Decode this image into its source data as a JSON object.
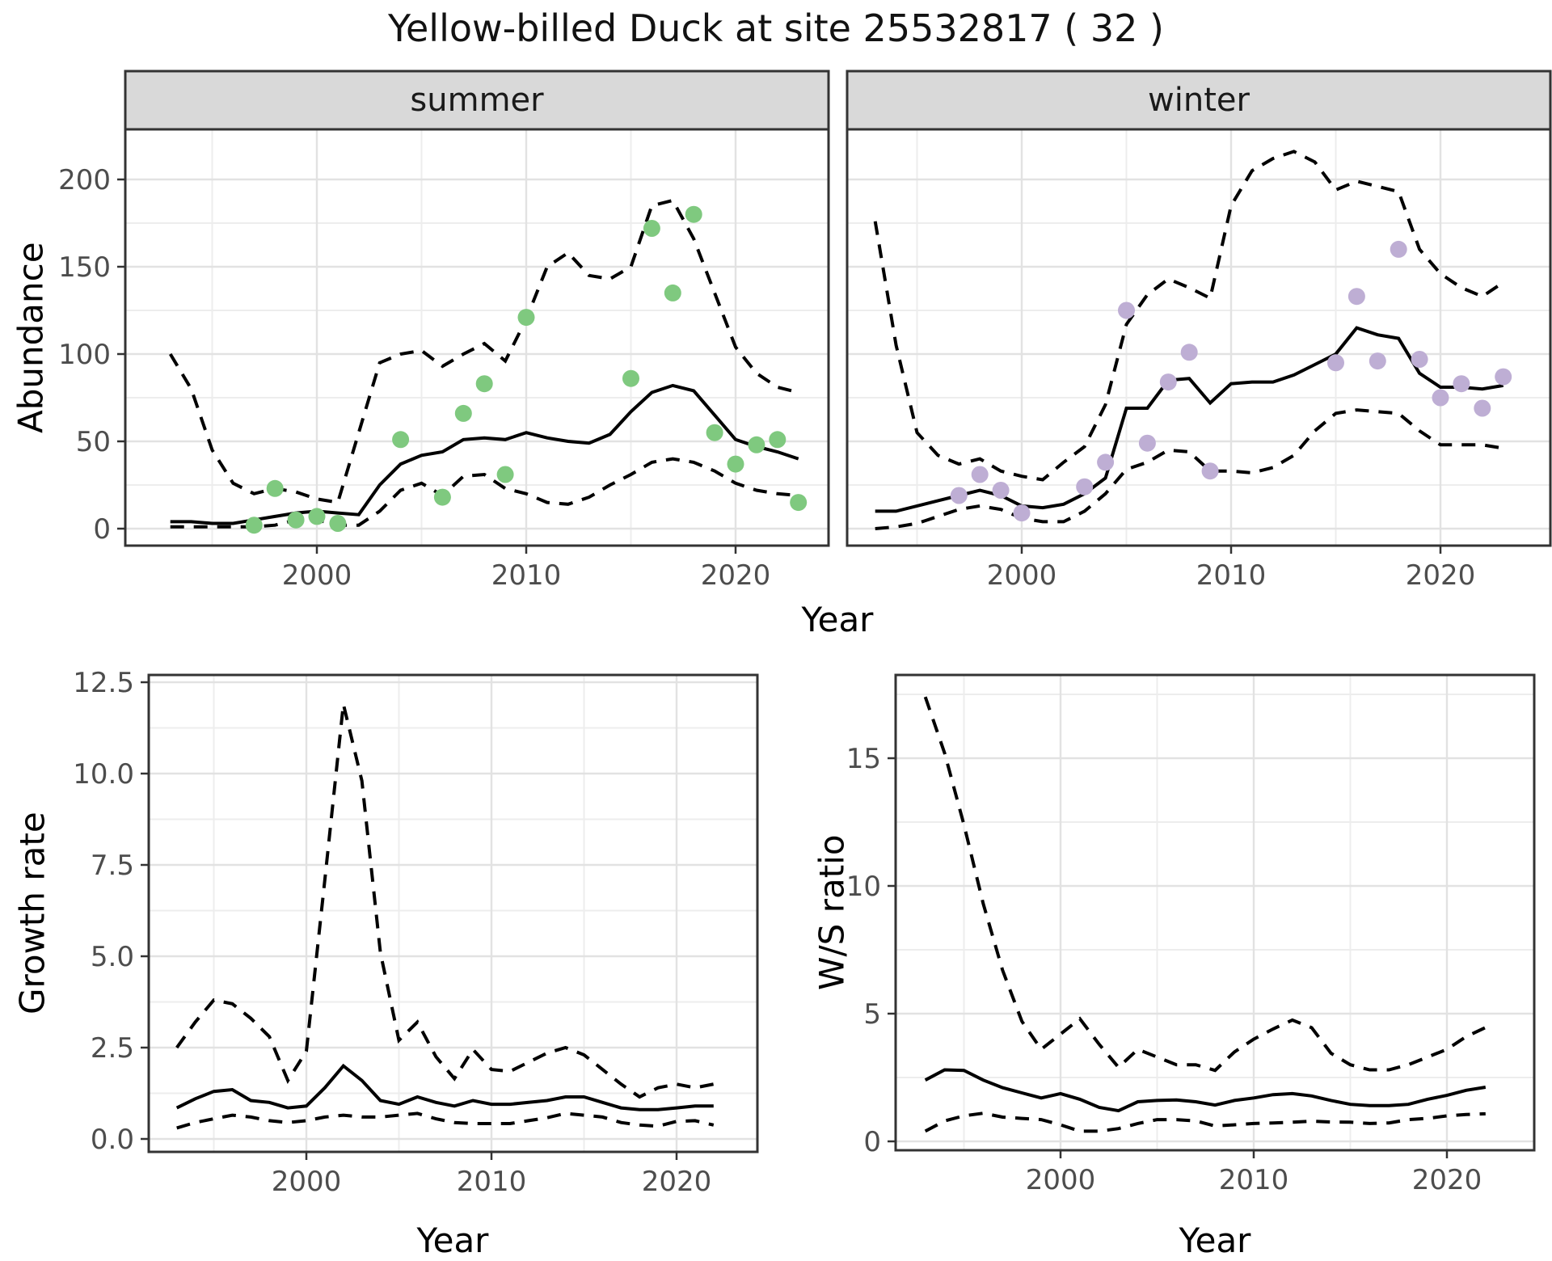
{
  "title": "Yellow-billed Duck at site 25532817 ( 32 )",
  "axis_titles": {
    "abundance": "Abundance",
    "growth": "Growth rate",
    "ws": "W/S ratio",
    "year": "Year"
  },
  "colors": {
    "summer_points": "#7fc97f",
    "winter_points": "#beaed4",
    "line": "#000000",
    "grid_major": "#e2e2e2",
    "grid_minor": "#ededed",
    "strip_fill": "#d9d9d9",
    "panel_border": "#333333",
    "tick_text": "#4d4d4d",
    "background": "#ffffff"
  },
  "chart_data": [
    {
      "type": "line",
      "facet_label": "summer",
      "xlabel": "Year",
      "ylabel": "Abundance",
      "x": [
        1993,
        1994,
        1995,
        1996,
        1997,
        1998,
        1999,
        2000,
        2001,
        2002,
        2003,
        2004,
        2005,
        2006,
        2007,
        2008,
        2009,
        2010,
        2011,
        2012,
        2013,
        2014,
        2015,
        2016,
        2017,
        2018,
        2019,
        2020,
        2021,
        2022,
        2023
      ],
      "series": [
        {
          "name": "median",
          "linetype": "solid",
          "values": [
            4,
            4,
            3,
            3,
            5,
            7,
            9,
            10,
            9,
            8,
            25,
            37,
            42,
            44,
            51,
            52,
            51,
            55,
            52,
            50,
            49,
            54,
            67,
            78,
            82,
            79,
            65,
            51,
            47,
            44,
            40
          ]
        },
        {
          "name": "upper-ci",
          "linetype": "dashed",
          "values": [
            100,
            80,
            45,
            26,
            20,
            23,
            21,
            17,
            15,
            55,
            95,
            100,
            102,
            93,
            100,
            106,
            96,
            120,
            150,
            158,
            145,
            143,
            150,
            185,
            188,
            166,
            135,
            104,
            89,
            81,
            78
          ]
        },
        {
          "name": "lower-ci",
          "linetype": "dashed",
          "values": [
            1,
            1,
            1,
            1,
            1,
            2,
            5,
            5,
            2,
            2,
            10,
            22,
            26,
            19,
            30,
            31,
            23,
            20,
            15,
            14,
            18,
            25,
            31,
            38,
            40,
            38,
            33,
            26,
            22,
            20,
            19
          ]
        }
      ],
      "observed_points": [
        [
          1997,
          2
        ],
        [
          1998,
          23
        ],
        [
          1999,
          5
        ],
        [
          2000,
          7
        ],
        [
          2001,
          3
        ],
        [
          2004,
          51
        ],
        [
          2006,
          18
        ],
        [
          2007,
          66
        ],
        [
          2008,
          83
        ],
        [
          2009,
          31
        ],
        [
          2010,
          121
        ],
        [
          2015,
          86
        ],
        [
          2016,
          172
        ],
        [
          2017,
          135
        ],
        [
          2018,
          180
        ],
        [
          2019,
          55
        ],
        [
          2020,
          37
        ],
        [
          2021,
          48
        ],
        [
          2022,
          51
        ],
        [
          2023,
          15
        ]
      ],
      "point_color": "#7fc97f",
      "xlim": [
        1990.9,
        2024.4
      ],
      "ylim": [
        -9,
        229
      ],
      "xticks": [
        2000,
        2010,
        2020
      ],
      "xticks_minor": [
        1995,
        2005,
        2015
      ],
      "ytick_values": [
        0,
        50,
        100,
        150,
        200
      ],
      "ytick_labels": [
        "0",
        "50",
        "100",
        "150",
        "200"
      ],
      "yticks_minor": [
        25,
        75,
        125,
        175
      ],
      "grid": true,
      "legend": "none"
    },
    {
      "type": "line",
      "facet_label": "winter",
      "xlabel": "Year",
      "ylabel": "Abundance",
      "x": [
        1993,
        1994,
        1995,
        1996,
        1997,
        1998,
        1999,
        2000,
        2001,
        2002,
        2003,
        2004,
        2005,
        2006,
        2007,
        2008,
        2009,
        2010,
        2011,
        2012,
        2013,
        2014,
        2015,
        2016,
        2017,
        2018,
        2019,
        2020,
        2021,
        2022,
        2023
      ],
      "series": [
        {
          "name": "median",
          "linetype": "solid",
          "values": [
            10,
            10,
            13,
            16,
            19,
            22,
            19,
            13,
            12,
            14,
            20,
            29,
            69,
            69,
            85,
            86,
            72,
            83,
            84,
            84,
            88,
            94,
            100,
            115,
            111,
            109,
            89,
            81,
            81,
            80,
            82
          ]
        },
        {
          "name": "upper-ci",
          "linetype": "dashed",
          "values": [
            176,
            105,
            55,
            42,
            37,
            40,
            33,
            30,
            28,
            38,
            47,
            71,
            117,
            134,
            143,
            138,
            132,
            185,
            205,
            212,
            216,
            210,
            194,
            199,
            196,
            193,
            160,
            146,
            138,
            133,
            141
          ]
        },
        {
          "name": "lower-ci",
          "linetype": "dashed",
          "values": [
            0,
            1,
            3,
            7,
            11,
            13,
            11,
            6,
            4,
            4,
            10,
            20,
            34,
            38,
            45,
            44,
            33,
            33,
            32,
            35,
            42,
            56,
            66,
            68,
            67,
            66,
            56,
            48,
            48,
            48,
            46
          ]
        }
      ],
      "observed_points": [
        [
          1997,
          19
        ],
        [
          1998,
          31
        ],
        [
          1999,
          22
        ],
        [
          2000,
          9
        ],
        [
          2003,
          24
        ],
        [
          2004,
          38
        ],
        [
          2005,
          125
        ],
        [
          2006,
          49
        ],
        [
          2007,
          84
        ],
        [
          2008,
          101
        ],
        [
          2009,
          33
        ],
        [
          2015,
          95
        ],
        [
          2016,
          133
        ],
        [
          2017,
          96
        ],
        [
          2018,
          160
        ],
        [
          2019,
          97
        ],
        [
          2020,
          75
        ],
        [
          2021,
          83
        ],
        [
          2022,
          69
        ],
        [
          2023,
          87
        ]
      ],
      "point_color": "#beaed4",
      "xlim": [
        1991.6,
        2025.2
      ],
      "ylim": [
        -9,
        229
      ],
      "xticks": [
        2000,
        2010,
        2020
      ],
      "xticks_minor": [
        1995,
        2005,
        2015
      ],
      "ytick_values": [
        0,
        50,
        100,
        150,
        200
      ],
      "ytick_labels": [
        "0",
        "50",
        "100",
        "150",
        "200"
      ],
      "yticks_minor": [
        25,
        75,
        125,
        175
      ],
      "grid": true,
      "legend": "none"
    },
    {
      "type": "line",
      "facet_label": null,
      "xlabel": "Year",
      "ylabel": "Growth rate",
      "x": [
        1993,
        1994,
        1995,
        1996,
        1997,
        1998,
        1999,
        2000,
        2001,
        2002,
        2003,
        2004,
        2005,
        2006,
        2007,
        2008,
        2009,
        2010,
        2011,
        2012,
        2013,
        2014,
        2015,
        2016,
        2017,
        2018,
        2019,
        2020,
        2021,
        2022
      ],
      "series": [
        {
          "name": "median",
          "linetype": "solid",
          "values": [
            0.85,
            1.1,
            1.3,
            1.35,
            1.05,
            1.0,
            0.85,
            0.9,
            1.4,
            2.0,
            1.6,
            1.05,
            0.95,
            1.15,
            1.0,
            0.9,
            1.05,
            0.95,
            0.95,
            1.0,
            1.05,
            1.15,
            1.15,
            1.0,
            0.85,
            0.8,
            0.8,
            0.85,
            0.9,
            0.9
          ]
        },
        {
          "name": "upper-ci",
          "linetype": "dashed",
          "values": [
            2.5,
            3.2,
            3.8,
            3.7,
            3.3,
            2.8,
            1.6,
            2.4,
            7.1,
            11.9,
            9.8,
            5.1,
            2.7,
            3.2,
            2.25,
            1.65,
            2.45,
            1.9,
            1.85,
            2.1,
            2.35,
            2.5,
            2.3,
            1.9,
            1.5,
            1.15,
            1.4,
            1.5,
            1.4,
            1.5
          ]
        },
        {
          "name": "lower-ci",
          "linetype": "dashed",
          "values": [
            0.3,
            0.45,
            0.55,
            0.65,
            0.6,
            0.5,
            0.45,
            0.5,
            0.6,
            0.65,
            0.6,
            0.6,
            0.65,
            0.7,
            0.55,
            0.45,
            0.42,
            0.42,
            0.42,
            0.5,
            0.58,
            0.7,
            0.65,
            0.6,
            0.45,
            0.38,
            0.35,
            0.48,
            0.5,
            0.38
          ]
        }
      ],
      "observed_points": [],
      "point_color": null,
      "xlim": [
        1991.5,
        2024.4
      ],
      "ylim": [
        -0.35,
        12.7
      ],
      "xticks": [
        2000,
        2010,
        2020
      ],
      "xticks_minor": [
        1995,
        2005,
        2015
      ],
      "ytick_values": [
        0.0,
        2.5,
        5.0,
        7.5,
        10.0,
        12.5
      ],
      "ytick_labels": [
        "0.0",
        "2.5",
        "5.0",
        "7.5",
        "10.0",
        "12.5"
      ],
      "yticks_minor": [
        1.25,
        3.75,
        6.25,
        8.75,
        11.25
      ],
      "grid": true,
      "legend": "none"
    },
    {
      "type": "line",
      "facet_label": null,
      "xlabel": "Year",
      "ylabel": "W/S ratio",
      "x": [
        1993,
        1994,
        1995,
        1996,
        1997,
        1998,
        1999,
        2000,
        2001,
        2002,
        2003,
        2004,
        2005,
        2006,
        2007,
        2008,
        2009,
        2010,
        2011,
        2012,
        2013,
        2014,
        2015,
        2016,
        2017,
        2018,
        2019,
        2020,
        2021,
        2022
      ],
      "series": [
        {
          "name": "median",
          "linetype": "solid",
          "values": [
            2.4,
            2.8,
            2.78,
            2.4,
            2.1,
            1.9,
            1.7,
            1.87,
            1.65,
            1.33,
            1.2,
            1.55,
            1.6,
            1.62,
            1.55,
            1.42,
            1.6,
            1.7,
            1.83,
            1.87,
            1.78,
            1.6,
            1.45,
            1.4,
            1.4,
            1.45,
            1.65,
            1.8,
            2.0,
            2.12
          ]
        },
        {
          "name": "upper-ci",
          "linetype": "dashed",
          "values": [
            17.4,
            15.2,
            12.4,
            9.3,
            6.7,
            4.7,
            3.6,
            4.2,
            4.8,
            3.8,
            2.9,
            3.6,
            3.3,
            3.0,
            3.0,
            2.78,
            3.5,
            4.0,
            4.4,
            4.75,
            4.45,
            3.45,
            3.0,
            2.8,
            2.8,
            3.0,
            3.3,
            3.6,
            4.1,
            4.46
          ]
        },
        {
          "name": "lower-ci",
          "linetype": "dashed",
          "values": [
            0.4,
            0.8,
            1.0,
            1.1,
            0.95,
            0.9,
            0.85,
            0.65,
            0.4,
            0.4,
            0.5,
            0.7,
            0.85,
            0.85,
            0.8,
            0.6,
            0.65,
            0.7,
            0.72,
            0.75,
            0.79,
            0.76,
            0.75,
            0.7,
            0.72,
            0.85,
            0.9,
            1.0,
            1.05,
            1.08
          ]
        }
      ],
      "observed_points": [],
      "point_color": null,
      "xlim": [
        1991.5,
        2024.5
      ],
      "ylim": [
        -0.35,
        18.3
      ],
      "xticks": [
        2000,
        2010,
        2020
      ],
      "xticks_minor": [
        1995,
        2005,
        2015
      ],
      "ytick_values": [
        0,
        5,
        10,
        15
      ],
      "ytick_labels": [
        "0",
        "5",
        "10",
        "15"
      ],
      "yticks_minor": [
        2.5,
        7.5,
        12.5,
        17.5
      ],
      "grid": true,
      "legend": "none"
    }
  ]
}
